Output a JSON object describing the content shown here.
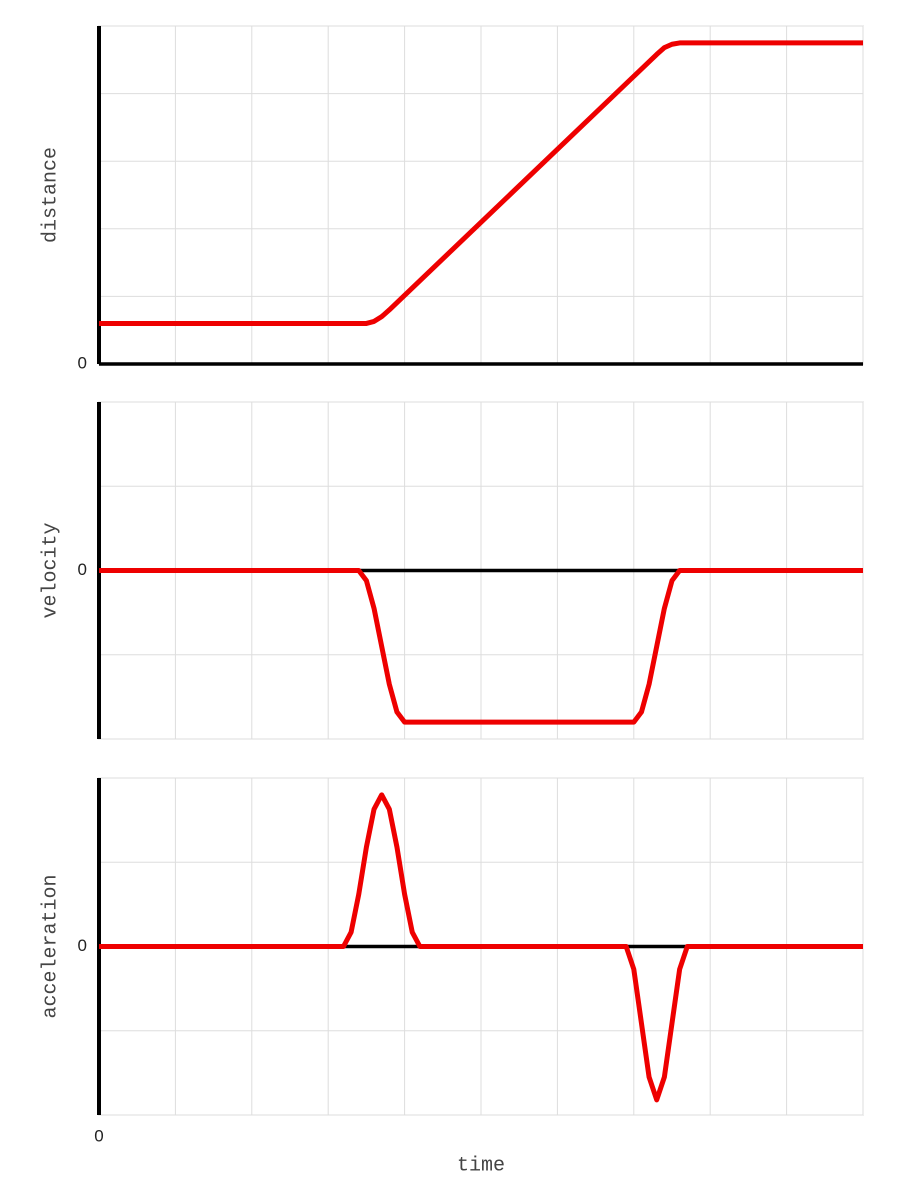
{
  "chart_data": [
    {
      "type": "line",
      "ylabel": "distance",
      "x": [
        0,
        3.5,
        3.6,
        3.7,
        3.8,
        7.3,
        7.4,
        7.5,
        7.6,
        10
      ],
      "values": [
        0.6,
        0.6,
        0.63,
        0.7,
        0.8,
        4.58,
        4.68,
        4.73,
        4.75,
        4.75
      ],
      "color": "#ee0000",
      "xlim": [
        0,
        10
      ],
      "ylim": [
        0,
        5
      ],
      "yticks": [
        0
      ],
      "xgrid": [
        0,
        1,
        2,
        3,
        4,
        5,
        6,
        7,
        8,
        9,
        10
      ],
      "ygrid": [
        0,
        1,
        2,
        3,
        4,
        5
      ],
      "grid": true
    },
    {
      "type": "line",
      "ylabel": "velocity",
      "x": [
        0,
        3.4,
        3.5,
        3.6,
        3.7,
        3.8,
        3.9,
        4.0,
        7.0,
        7.1,
        7.2,
        7.3,
        7.4,
        7.5,
        7.6,
        10
      ],
      "values": [
        0,
        0,
        -0.12,
        -0.45,
        -0.9,
        -1.35,
        -1.68,
        -1.8,
        -1.8,
        -1.68,
        -1.35,
        -0.9,
        -0.45,
        -0.12,
        0,
        0
      ],
      "color": "#ee0000",
      "xlim": [
        0,
        10
      ],
      "ylim": [
        -2,
        2
      ],
      "yticks": [
        0
      ],
      "xgrid": [
        0,
        1,
        2,
        3,
        4,
        5,
        6,
        7,
        8,
        9,
        10
      ],
      "ygrid": [
        -2,
        -1,
        0,
        1,
        2
      ],
      "grid": true
    },
    {
      "type": "line",
      "ylabel": "acceleration",
      "xlabel": "time",
      "x": [
        0,
        3.2,
        3.3,
        3.4,
        3.5,
        3.6,
        3.7,
        3.8,
        3.9,
        4.0,
        4.1,
        4.2,
        6.9,
        7.0,
        7.1,
        7.2,
        7.3,
        7.4,
        7.5,
        7.6,
        7.7,
        10
      ],
      "values": [
        0,
        0,
        0.17,
        0.62,
        1.18,
        1.63,
        1.8,
        1.63,
        1.18,
        0.62,
        0.17,
        0,
        0,
        -0.27,
        -0.91,
        -1.55,
        -1.82,
        -1.55,
        -0.91,
        -0.27,
        0,
        0
      ],
      "color": "#ee0000",
      "xlim": [
        0,
        10
      ],
      "ylim": [
        -2,
        2
      ],
      "yticks": [
        0
      ],
      "xticks": [
        0
      ],
      "xgrid": [
        0,
        1,
        2,
        3,
        4,
        5,
        6,
        7,
        8,
        9,
        10
      ],
      "ygrid": [
        -2,
        -1,
        0,
        1,
        2
      ],
      "grid": true
    }
  ]
}
